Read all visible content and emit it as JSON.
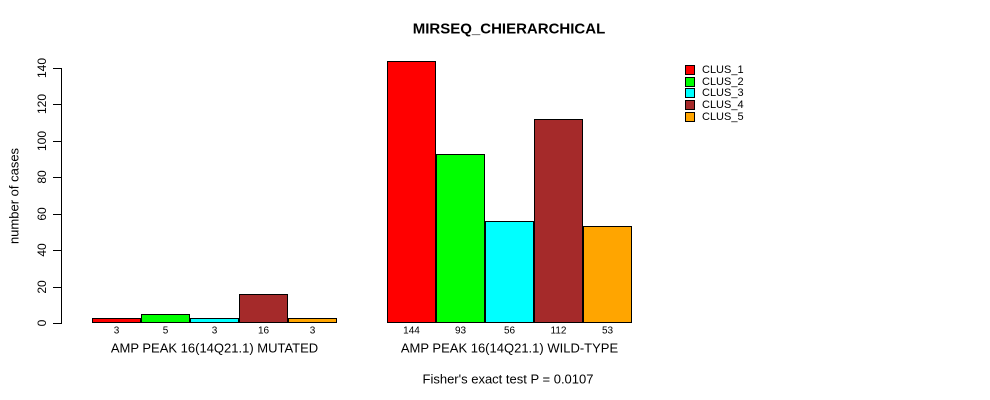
{
  "chart_data": {
    "type": "bar",
    "title": "MIRSEQ_CHIERARCHICAL",
    "ylabel": "number of cases",
    "xlabel": "",
    "ylim": [
      0,
      140
    ],
    "yticks": [
      0,
      20,
      40,
      60,
      80,
      100,
      120,
      140
    ],
    "grid": false,
    "legend_position": "top-right",
    "series": [
      "CLUS_1",
      "CLUS_2",
      "CLUS_3",
      "CLUS_4",
      "CLUS_5"
    ],
    "series_colors": [
      "#FF0000",
      "#00FF00",
      "#00FFFF",
      "#A52A2A",
      "#FFA500"
    ],
    "groups": [
      {
        "label": "AMP PEAK 16(14Q21.1) MUTATED",
        "values": [
          3,
          5,
          3,
          16,
          3
        ]
      },
      {
        "label": "AMP PEAK 16(14Q21.1) WILD-TYPE",
        "values": [
          144,
          93,
          56,
          112,
          53
        ]
      }
    ],
    "bar_value_labels_shown": true,
    "annotation": "Fisher's exact test P = 0.0107"
  }
}
